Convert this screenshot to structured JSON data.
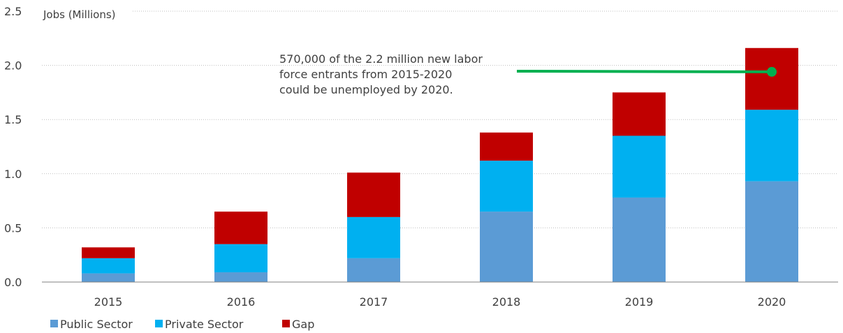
{
  "chart_data": {
    "type": "bar",
    "stacked": true,
    "title": "",
    "xlabel": "",
    "ylabel": "Jobs (Millions)",
    "ylim": [
      0,
      2.5
    ],
    "yticks": [
      "0.0",
      "0.5",
      "1.0",
      "1.5",
      "2.0",
      "2.5"
    ],
    "grid": true,
    "categories": [
      "2015",
      "2016",
      "2017",
      "2018",
      "2019",
      "2020"
    ],
    "series": [
      {
        "name": "Public Sector",
        "color": "#5b9bd5",
        "values": [
          0.08,
          0.09,
          0.22,
          0.65,
          0.78,
          0.93
        ]
      },
      {
        "name": "Private Sector",
        "color": "#00b0f0",
        "values": [
          0.14,
          0.26,
          0.38,
          0.47,
          0.57,
          0.66
        ]
      },
      {
        "name": "Gap",
        "color": "#c00000",
        "values": [
          0.1,
          0.3,
          0.41,
          0.26,
          0.4,
          0.57
        ]
      }
    ],
    "legend_position": "bottom-left",
    "annotation": {
      "lines": [
        "570,000 of the 2.2 million new labor",
        "force entrants from 2015-2020",
        "could be unemployed by 2020."
      ],
      "pointer_category": "2020",
      "pointer_value": 1.94,
      "pointer_color": "#00b050"
    }
  }
}
